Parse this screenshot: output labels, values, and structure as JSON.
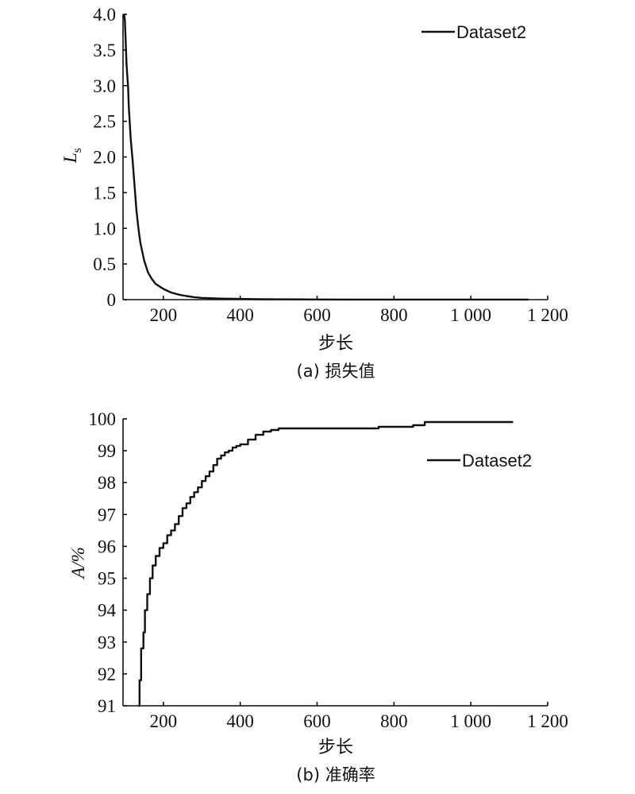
{
  "chart_data": [
    {
      "id": "a",
      "type": "line",
      "caption": "(a) 损失值",
      "xlabel": "步长",
      "ylabel": "L",
      "ylabel_sub": "s",
      "xlim": [
        95,
        1200
      ],
      "ylim": [
        0,
        4.0
      ],
      "xticks": [
        200,
        400,
        600,
        800,
        1000,
        1200
      ],
      "xtick_labels": [
        "200",
        "400",
        "600",
        "800",
        "1 000",
        "1 200"
      ],
      "yticks": [
        0,
        0.5,
        1.0,
        1.5,
        2.0,
        2.5,
        3.0,
        3.5,
        4.0
      ],
      "ytick_labels": [
        "0",
        "0.5",
        "1.0",
        "1.5",
        "2.0",
        "2.5",
        "3.0",
        "3.5",
        "4.0"
      ],
      "legend": {
        "position": "top-right"
      },
      "series": [
        {
          "name": "Dataset2",
          "x": [
            98,
            100,
            102,
            104,
            106,
            108,
            110,
            115,
            120,
            125,
            130,
            135,
            140,
            150,
            160,
            170,
            180,
            200,
            220,
            240,
            260,
            280,
            300,
            350,
            400,
            450,
            500,
            600,
            700,
            800,
            900,
            1000,
            1150
          ],
          "y": [
            4.0,
            3.9,
            3.6,
            3.3,
            3.15,
            3.0,
            2.7,
            2.25,
            1.95,
            1.6,
            1.25,
            1.0,
            0.8,
            0.55,
            0.38,
            0.29,
            0.22,
            0.15,
            0.1,
            0.07,
            0.05,
            0.035,
            0.025,
            0.015,
            0.01,
            0.006,
            0.004,
            0.002,
            0.001,
            0.001,
            0.001,
            0.001,
            0.001
          ]
        }
      ]
    },
    {
      "id": "b",
      "type": "line",
      "caption": "(b) 准确率",
      "xlabel": "步长",
      "ylabel": "A/%",
      "xlim": [
        95,
        1200
      ],
      "ylim": [
        91,
        100
      ],
      "xticks": [
        200,
        400,
        600,
        800,
        1000,
        1200
      ],
      "xtick_labels": [
        "200",
        "400",
        "600",
        "800",
        "1 000",
        "1 200"
      ],
      "yticks": [
        91,
        92,
        93,
        94,
        95,
        96,
        97,
        98,
        99,
        100
      ],
      "ytick_labels": [
        "91",
        "92",
        "93",
        "94",
        "95",
        "96",
        "97",
        "98",
        "99",
        "100"
      ],
      "legend": {
        "position": "upper-right"
      },
      "series": [
        {
          "name": "Dataset2",
          "x": [
            135,
            138,
            142,
            148,
            152,
            158,
            165,
            172,
            180,
            190,
            200,
            210,
            220,
            230,
            240,
            250,
            260,
            270,
            280,
            290,
            300,
            310,
            320,
            330,
            340,
            350,
            360,
            370,
            380,
            390,
            400,
            420,
            440,
            460,
            480,
            500,
            550,
            600,
            700,
            760,
            800,
            850,
            880,
            950,
            1000,
            1050,
            1110
          ],
          "y": [
            91.0,
            91.8,
            92.8,
            93.3,
            94.0,
            94.5,
            95.0,
            95.4,
            95.7,
            95.95,
            96.1,
            96.35,
            96.5,
            96.7,
            96.95,
            97.2,
            97.35,
            97.55,
            97.7,
            97.85,
            98.05,
            98.2,
            98.35,
            98.55,
            98.75,
            98.85,
            98.95,
            99.0,
            99.1,
            99.15,
            99.2,
            99.35,
            99.5,
            99.6,
            99.65,
            99.7,
            99.7,
            99.7,
            99.7,
            99.75,
            99.75,
            99.8,
            99.9,
            99.9,
            99.9,
            99.9,
            99.9
          ]
        }
      ]
    }
  ]
}
